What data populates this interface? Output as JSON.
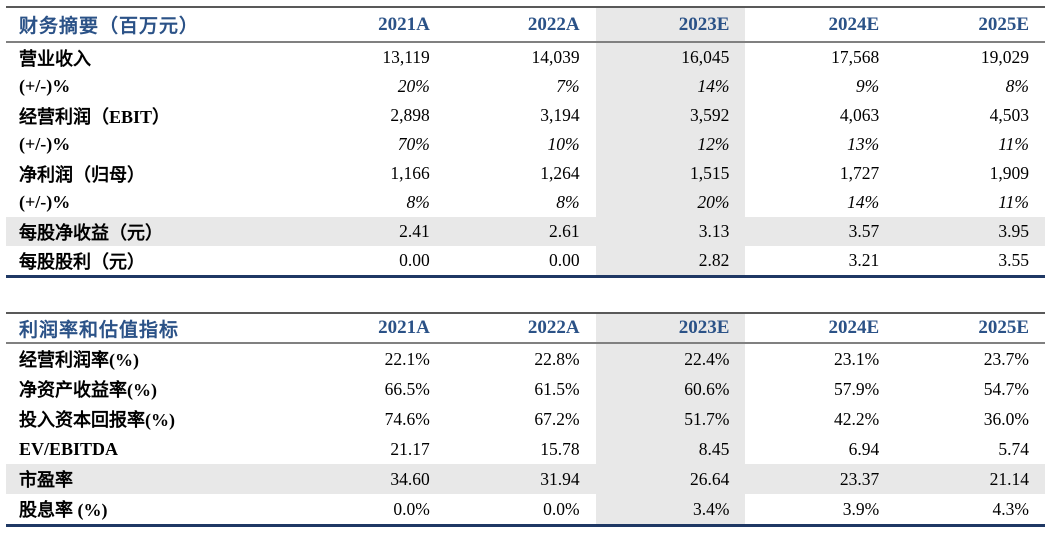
{
  "colors": {
    "header_text": "#2B5287",
    "top_rule": "#595959",
    "header_rule": "#808080",
    "bottom_rule": "#1F3864",
    "highlight_bg": "#E8E8E8"
  },
  "tables": [
    {
      "title": "财务摘要（百万元）",
      "columns": [
        "2021A",
        "2022A",
        "2023E",
        "2024E",
        "2025E"
      ],
      "highlight_column": "2023E",
      "rows": [
        {
          "label": "营业收入",
          "style": "normal",
          "values": [
            "13,119",
            "14,039",
            "16,045",
            "17,568",
            "19,029"
          ]
        },
        {
          "label": "(+/-)%",
          "style": "italic",
          "values": [
            "20%",
            "7%",
            "14%",
            "9%",
            "8%"
          ]
        },
        {
          "label": "经营利润（EBIT）",
          "style": "normal",
          "values": [
            "2,898",
            "3,194",
            "3,592",
            "4,063",
            "4,503"
          ]
        },
        {
          "label": "(+/-)%",
          "style": "italic",
          "values": [
            "70%",
            "10%",
            "12%",
            "13%",
            "11%"
          ]
        },
        {
          "label": "净利润（归母）",
          "style": "normal",
          "values": [
            "1,166",
            "1,264",
            "1,515",
            "1,727",
            "1,909"
          ]
        },
        {
          "label": "(+/-)%",
          "style": "italic",
          "values": [
            "8%",
            "8%",
            "20%",
            "14%",
            "11%"
          ]
        },
        {
          "label": "每股净收益（元）",
          "style": "highlight",
          "values": [
            "2.41",
            "2.61",
            "3.13",
            "3.57",
            "3.95"
          ]
        },
        {
          "label": "每股股利（元）",
          "style": "normal",
          "values": [
            "0.00",
            "0.00",
            "2.82",
            "3.21",
            "3.55"
          ]
        }
      ]
    },
    {
      "title": "利润率和估值指标",
      "columns": [
        "2021A",
        "2022A",
        "2023E",
        "2024E",
        "2025E"
      ],
      "highlight_column": "2023E",
      "rows": [
        {
          "label": "经营利润率(%)",
          "style": "normal",
          "values": [
            "22.1%",
            "22.8%",
            "22.4%",
            "23.1%",
            "23.7%"
          ]
        },
        {
          "label": "净资产收益率(%)",
          "style": "normal",
          "values": [
            "66.5%",
            "61.5%",
            "60.6%",
            "57.9%",
            "54.7%"
          ]
        },
        {
          "label": "投入资本回报率(%)",
          "style": "normal",
          "values": [
            "74.6%",
            "67.2%",
            "51.7%",
            "42.2%",
            "36.0%"
          ]
        },
        {
          "label": "EV/EBITDA",
          "style": "normal",
          "values": [
            "21.17",
            "15.78",
            "8.45",
            "6.94",
            "5.74"
          ]
        },
        {
          "label": "市盈率",
          "style": "highlight",
          "values": [
            "34.60",
            "31.94",
            "26.64",
            "23.37",
            "21.14"
          ]
        },
        {
          "label": "股息率 (%)",
          "style": "normal",
          "values": [
            "0.0%",
            "0.0%",
            "3.4%",
            "3.9%",
            "4.3%"
          ]
        }
      ]
    }
  ]
}
